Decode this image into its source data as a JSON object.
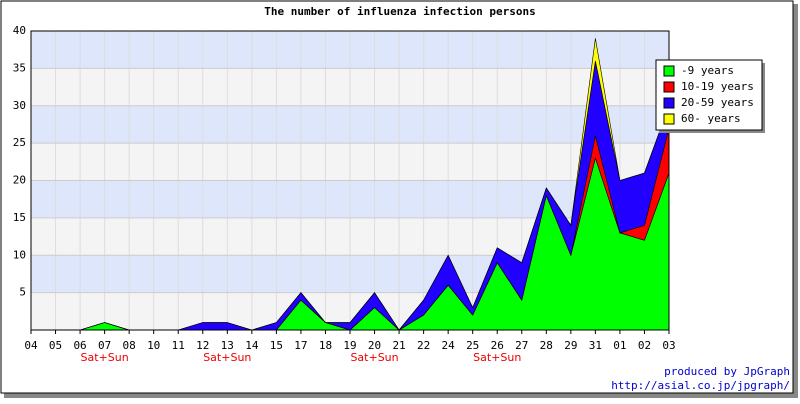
{
  "chart_data": {
    "type": "stacked-area",
    "title": "The number of influenza infection persons",
    "categories": [
      "04",
      "05",
      "06",
      "07",
      "08",
      "10",
      "11",
      "12",
      "13",
      "14",
      "15",
      "17",
      "18",
      "19",
      "20",
      "21",
      "22",
      "24",
      "25",
      "26",
      "27",
      "28",
      "29",
      "31",
      "01",
      "02",
      "03"
    ],
    "category_notes": [
      null,
      null,
      null,
      "Sat+Sun",
      null,
      null,
      null,
      null,
      "Sat+Sun",
      null,
      null,
      null,
      null,
      null,
      "Sat+Sun",
      null,
      null,
      null,
      null,
      "Sat+Sun",
      null,
      null,
      null,
      null,
      null,
      null,
      null
    ],
    "series": [
      {
        "name": "-9 years",
        "color": "#00ff00",
        "values": [
          0,
          0,
          0,
          1,
          0,
          0,
          0,
          0,
          0,
          0,
          0,
          4,
          1,
          0,
          3,
          0,
          2,
          6,
          2,
          9,
          4,
          18,
          10,
          23,
          13,
          12,
          21
        ]
      },
      {
        "name": "10-19 years",
        "color": "#ff0000",
        "values": [
          0,
          0,
          0,
          0,
          0,
          0,
          0,
          0,
          0,
          0,
          0,
          0,
          0,
          0,
          0,
          0,
          0,
          0,
          0,
          0,
          0,
          0,
          0,
          3,
          0,
          2,
          6
        ]
      },
      {
        "name": "20-59 years",
        "color": "#2200ff",
        "values": [
          0,
          0,
          0,
          0,
          0,
          0,
          0,
          1,
          1,
          0,
          1,
          1,
          0,
          1,
          2,
          0,
          2,
          4,
          1,
          2,
          5,
          1,
          4,
          10,
          7,
          7,
          3
        ]
      },
      {
        "name": "60- years",
        "color": "#ffff00",
        "values": [
          0,
          0,
          0,
          0,
          0,
          0,
          0,
          0,
          0,
          0,
          0,
          0,
          0,
          0,
          0,
          0,
          0,
          0,
          0,
          0,
          0,
          0,
          0,
          3,
          0,
          0,
          0
        ]
      }
    ],
    "ylim": [
      0,
      40
    ],
    "yticks": [
      5,
      10,
      15,
      20,
      25,
      30,
      35,
      40
    ],
    "band_colors": [
      "#f4f4f4",
      "#dde6fb"
    ],
    "grid": true,
    "legend": "top-right",
    "footer": [
      "produced by JpGraph",
      "http://asial.co.jp/jpgraph/"
    ]
  }
}
